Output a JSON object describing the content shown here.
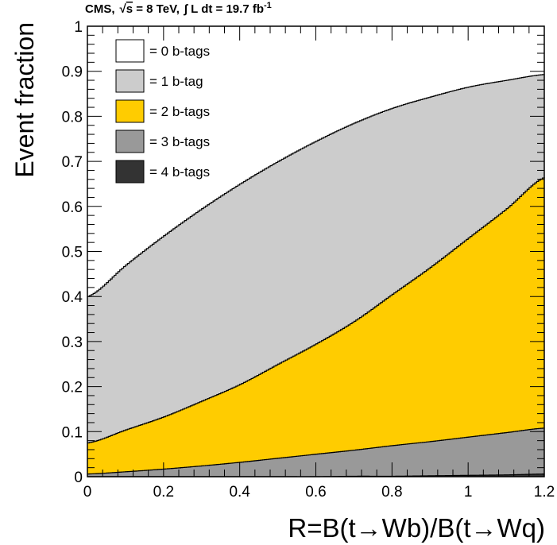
{
  "chart_data": {
    "type": "area",
    "stacked": true,
    "header": {
      "experiment": "CMS,",
      "energy_prefix": "√",
      "energy_s": "s",
      "energy": " = 8 TeV,",
      "lumi_integral": "∫",
      "lumi": " L dt = 19.7 fb",
      "lumi_exp": "-1"
    },
    "xlabel": "R=B(t→Wb)/B(t→Wq)",
    "ylabel": "Event fraction",
    "xlim": [
      0,
      1.2
    ],
    "ylim": [
      0,
      1
    ],
    "x_ticks": [
      0,
      0.2,
      0.4,
      0.6,
      0.8,
      1,
      1.2
    ],
    "x_tick_labels": [
      "0",
      "0.2",
      "0.4",
      "0.6",
      "0.8",
      "1",
      "1.2"
    ],
    "y_ticks": [
      0,
      0.1,
      0.2,
      0.3,
      0.4,
      0.5,
      0.6,
      0.7,
      0.8,
      0.9,
      1
    ],
    "y_tick_labels": [
      "0",
      "0.1",
      "0.2",
      "0.3",
      "0.4",
      "0.5",
      "0.6",
      "0.7",
      "0.8",
      "0.9",
      "1"
    ],
    "grid": false,
    "legend_position": "top-left",
    "x": [
      0,
      0.1,
      0.2,
      0.3,
      0.4,
      0.5,
      0.6,
      0.7,
      0.8,
      0.9,
      1.0,
      1.1,
      1.2
    ],
    "series": [
      {
        "name": "= 4 b-tags",
        "color": "#333333",
        "cumulative": [
          0,
          0,
          0,
          0,
          0,
          0,
          0,
          0.001,
          0.001,
          0.002,
          0.003,
          0.004,
          0.006
        ]
      },
      {
        "name": "= 3 b-tags",
        "color": "#999999",
        "cumulative": [
          0.006,
          0.011,
          0.017,
          0.024,
          0.032,
          0.041,
          0.05,
          0.059,
          0.069,
          0.078,
          0.088,
          0.098,
          0.108
        ]
      },
      {
        "name": "= 2 b-tags",
        "color": "#ffcc00",
        "cumulative": [
          0.075,
          0.104,
          0.133,
          0.168,
          0.205,
          0.25,
          0.295,
          0.345,
          0.405,
          0.465,
          0.53,
          0.595,
          0.665
        ]
      },
      {
        "name": "= 1 b-tag",
        "color": "#cccccc",
        "cumulative": [
          0.4,
          0.47,
          0.535,
          0.595,
          0.65,
          0.7,
          0.745,
          0.785,
          0.818,
          0.843,
          0.865,
          0.88,
          0.893
        ]
      },
      {
        "name": "= 0 b-tags",
        "color": "#ffffff",
        "cumulative": [
          1,
          1,
          1,
          1,
          1,
          1,
          1,
          1,
          1,
          1,
          1,
          1,
          1
        ]
      }
    ],
    "legend_order": [
      "= 0 b-tags",
      "= 1 b-tag",
      "= 2 b-tags",
      "= 3 b-tags",
      "= 4 b-tags"
    ]
  }
}
